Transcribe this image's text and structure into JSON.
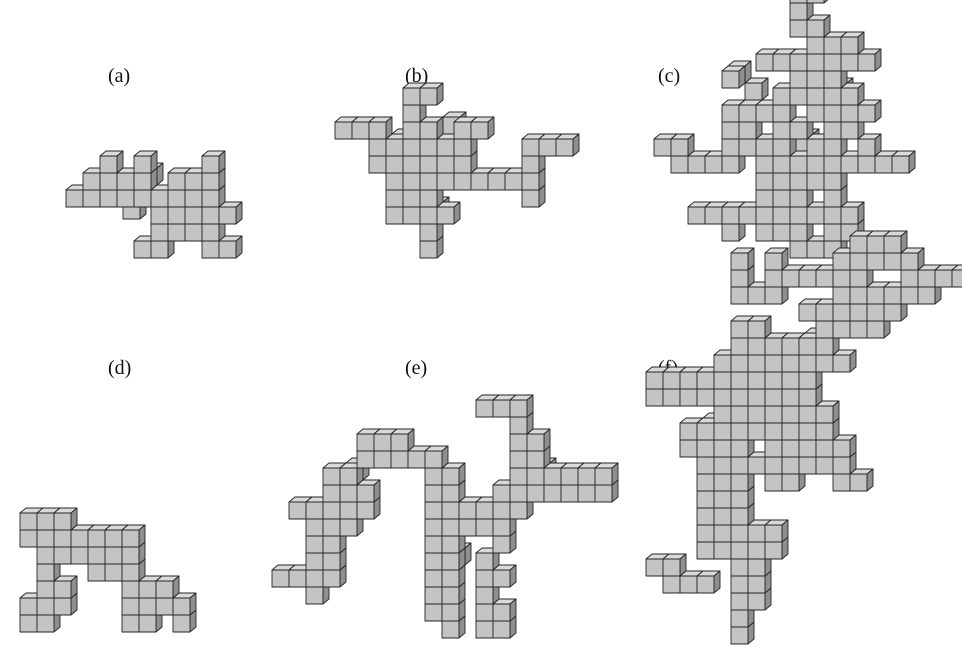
{
  "figure": {
    "panels": [
      {
        "id": "a",
        "label": "(a)"
      },
      {
        "id": "b",
        "label": "(b)"
      },
      {
        "id": "c",
        "label": "(c)"
      },
      {
        "id": "d",
        "label": "(d)"
      },
      {
        "id": "e",
        "label": "(e)"
      },
      {
        "id": "f",
        "label": "(f)"
      }
    ],
    "colors": {
      "cube_front": "#c4c4c4",
      "cube_top": "#dadada",
      "cube_side": "#8f8f8f",
      "edge": "#262626",
      "background": "#ffffff"
    }
  }
}
